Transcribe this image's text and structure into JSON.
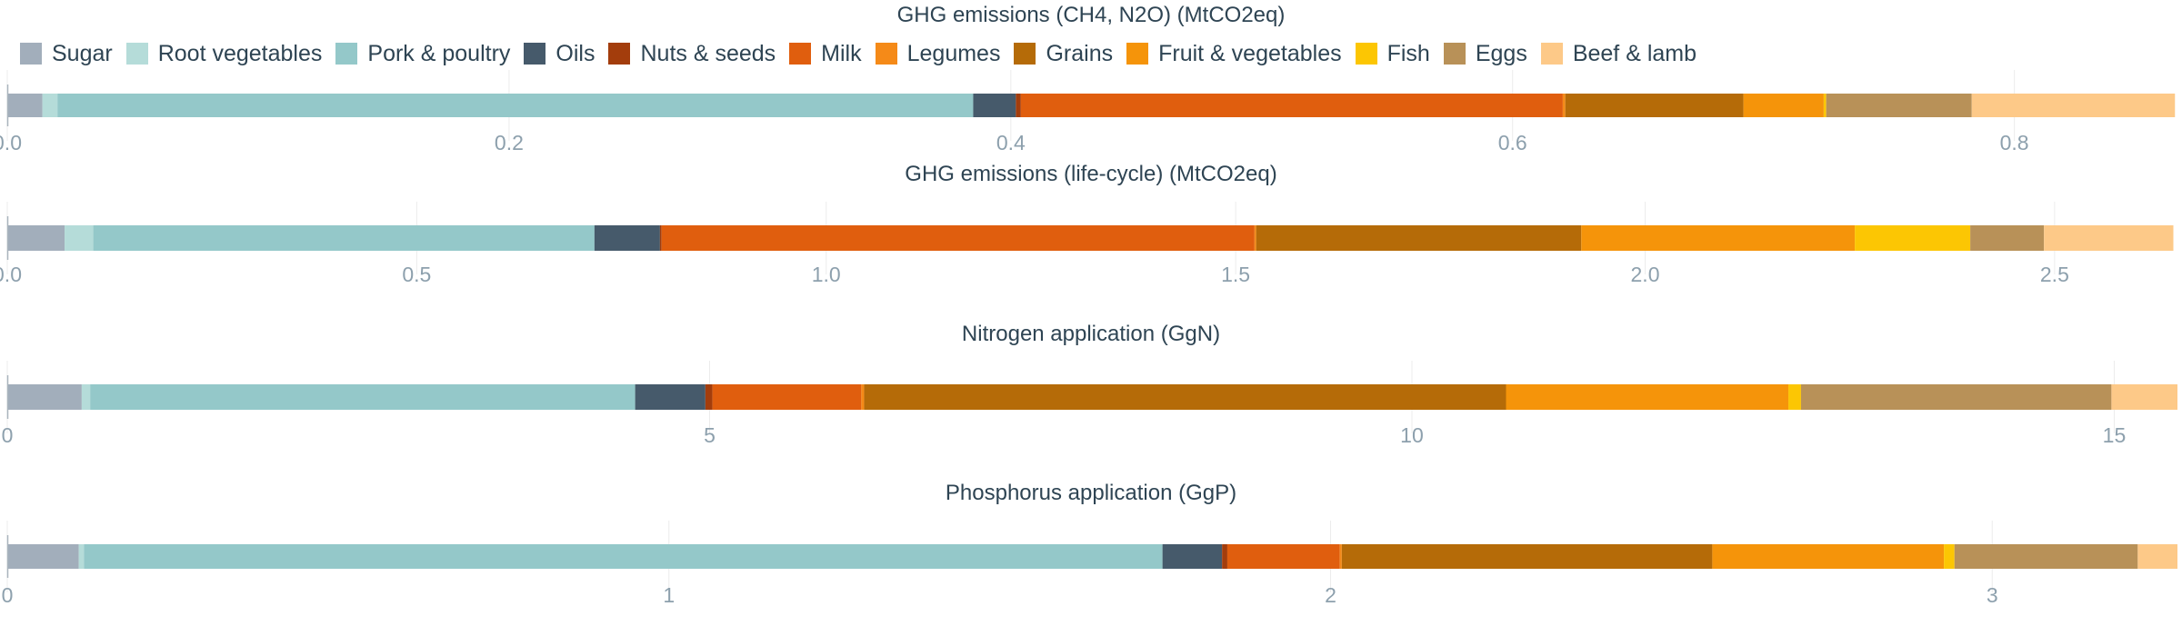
{
  "legend": [
    {
      "name": "Sugar",
      "color": "#a2aebb"
    },
    {
      "name": "Root vegetables",
      "color": "#b5dcd9"
    },
    {
      "name": "Pork & poultry",
      "color": "#94c8c9"
    },
    {
      "name": "Oils",
      "color": "#465a6b"
    },
    {
      "name": "Nuts & seeds",
      "color": "#a33d0c"
    },
    {
      "name": "Milk",
      "color": "#e05e0e"
    },
    {
      "name": "Legumes",
      "color": "#f58a18"
    },
    {
      "name": "Grains",
      "color": "#b56b08"
    },
    {
      "name": "Fruit & vegetables",
      "color": "#f5940a"
    },
    {
      "name": "Fish",
      "color": "#fcc603"
    },
    {
      "name": "Eggs",
      "color": "#b89158"
    },
    {
      "name": "Beef & lamb",
      "color": "#fdc988"
    }
  ],
  "chart_data": [
    {
      "type": "bar",
      "orientation": "horizontal",
      "stacked": true,
      "title": "GHG emissions (CH4, N2O) (MtCO2eq)",
      "xlim": [
        0,
        0.865
      ],
      "xticks": [
        0,
        0.2,
        0.4,
        0.6,
        0.8
      ],
      "xtick_labels": [
        "0.0",
        "0.2",
        "0.4",
        "0.6",
        "0.8"
      ],
      "grid": true,
      "series": [
        {
          "name": "Sugar",
          "values": [
            0.014
          ]
        },
        {
          "name": "Root vegetables",
          "values": [
            0.006
          ]
        },
        {
          "name": "Pork & poultry",
          "values": [
            0.365
          ]
        },
        {
          "name": "Oils",
          "values": [
            0.017
          ]
        },
        {
          "name": "Nuts & seeds",
          "values": [
            0.002
          ]
        },
        {
          "name": "Milk",
          "values": [
            0.216
          ]
        },
        {
          "name": "Legumes",
          "values": [
            0.001
          ]
        },
        {
          "name": "Grains",
          "values": [
            0.071
          ]
        },
        {
          "name": "Fruit & vegetables",
          "values": [
            0.032
          ]
        },
        {
          "name": "Fish",
          "values": [
            0.001
          ]
        },
        {
          "name": "Eggs",
          "values": [
            0.058
          ]
        },
        {
          "name": "Beef & lamb",
          "values": [
            0.081
          ]
        }
      ]
    },
    {
      "type": "bar",
      "orientation": "horizontal",
      "stacked": true,
      "title": "GHG emissions (life-cycle) (MtCO2eq)",
      "xlim": [
        0,
        2.65
      ],
      "xticks": [
        0,
        0.5,
        1,
        1.5,
        2,
        2.5
      ],
      "xtick_labels": [
        "0.0",
        "0.5",
        "1.0",
        "1.5",
        "2.0",
        "2.5"
      ],
      "grid": true,
      "series": [
        {
          "name": "Sugar",
          "values": [
            0.07
          ]
        },
        {
          "name": "Root vegetables",
          "values": [
            0.035
          ]
        },
        {
          "name": "Pork & poultry",
          "values": [
            0.612
          ]
        },
        {
          "name": "Oils",
          "values": [
            0.08
          ]
        },
        {
          "name": "Nuts & seeds",
          "values": [
            0.002
          ]
        },
        {
          "name": "Milk",
          "values": [
            0.724
          ]
        },
        {
          "name": "Legumes",
          "values": [
            0.002
          ]
        },
        {
          "name": "Grains",
          "values": [
            0.397
          ]
        },
        {
          "name": "Fruit & vegetables",
          "values": [
            0.334
          ]
        },
        {
          "name": "Fish",
          "values": [
            0.141
          ]
        },
        {
          "name": "Eggs",
          "values": [
            0.09
          ]
        },
        {
          "name": "Beef & lamb",
          "values": [
            0.158
          ]
        }
      ]
    },
    {
      "type": "bar",
      "orientation": "horizontal",
      "stacked": true,
      "title": "Nitrogen application (GgN)",
      "xlim": [
        0,
        15.45
      ],
      "xticks": [
        0,
        5,
        10,
        15
      ],
      "xtick_labels": [
        "0",
        "5",
        "10",
        "15"
      ],
      "grid": true,
      "series": [
        {
          "name": "Sugar",
          "values": [
            0.53
          ]
        },
        {
          "name": "Root vegetables",
          "values": [
            0.06
          ]
        },
        {
          "name": "Pork & poultry",
          "values": [
            3.88
          ]
        },
        {
          "name": "Oils",
          "values": [
            0.5
          ]
        },
        {
          "name": "Nuts & seeds",
          "values": [
            0.05
          ]
        },
        {
          "name": "Milk",
          "values": [
            1.06
          ]
        },
        {
          "name": "Legumes",
          "values": [
            0.02
          ]
        },
        {
          "name": "Grains",
          "values": [
            4.57
          ]
        },
        {
          "name": "Fruit & vegetables",
          "values": [
            2.01
          ]
        },
        {
          "name": "Fish",
          "values": [
            0.09
          ]
        },
        {
          "name": "Eggs",
          "values": [
            2.21
          ]
        },
        {
          "name": "Beef & lamb",
          "values": [
            0.47
          ]
        }
      ]
    },
    {
      "type": "bar",
      "orientation": "horizontal",
      "stacked": true,
      "title": "Phosphorus application (GgP)",
      "xlim": [
        0,
        3.28
      ],
      "xticks": [
        0,
        1,
        2,
        3
      ],
      "xtick_labels": [
        "0",
        "1",
        "2",
        "3"
      ],
      "grid": true,
      "series": [
        {
          "name": "Sugar",
          "values": [
            0.108
          ]
        },
        {
          "name": "Root vegetables",
          "values": [
            0.008
          ]
        },
        {
          "name": "Pork & poultry",
          "values": [
            1.63
          ]
        },
        {
          "name": "Oils",
          "values": [
            0.09
          ]
        },
        {
          "name": "Nuts & seeds",
          "values": [
            0.008
          ]
        },
        {
          "name": "Milk",
          "values": [
            0.17
          ]
        },
        {
          "name": "Legumes",
          "values": [
            0.003
          ]
        },
        {
          "name": "Grains",
          "values": [
            0.56
          ]
        },
        {
          "name": "Fruit & vegetables",
          "values": [
            0.35
          ]
        },
        {
          "name": "Fish",
          "values": [
            0.016
          ]
        },
        {
          "name": "Eggs",
          "values": [
            0.277
          ]
        },
        {
          "name": "Beef & lamb",
          "values": [
            0.06
          ]
        }
      ]
    }
  ]
}
